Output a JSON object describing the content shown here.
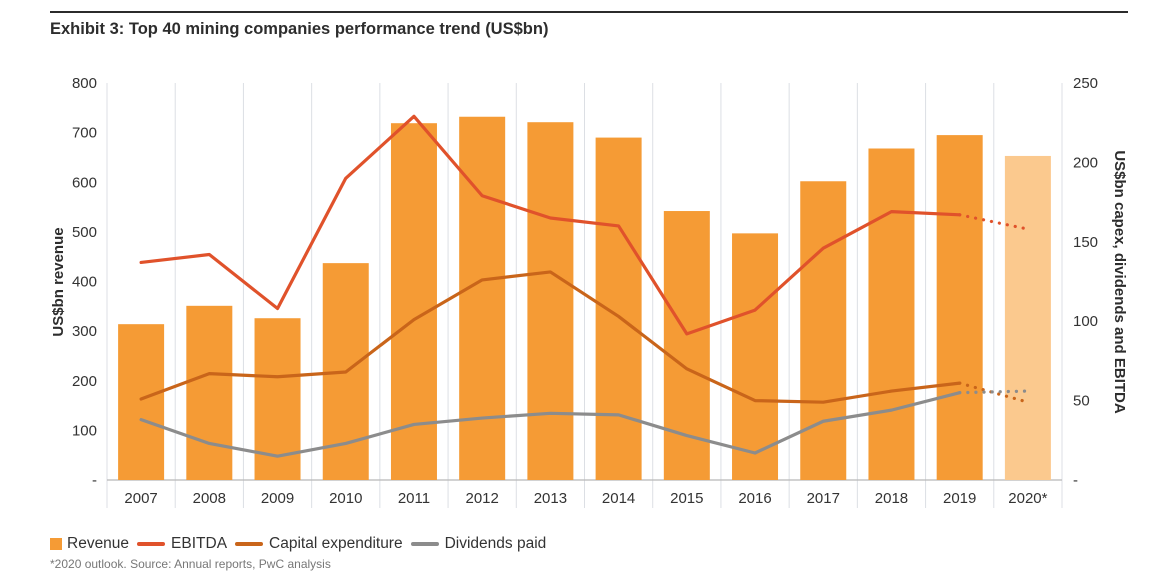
{
  "header": {
    "title": "Exhibit 3: Top 40 mining companies performance trend (US$bn)"
  },
  "legend": {
    "items": [
      {
        "label": "Revenue",
        "type": "box",
        "color": "#F59B35"
      },
      {
        "label": "EBITDA",
        "type": "line",
        "color": "#E0522B"
      },
      {
        "label": "Capital expenditure",
        "type": "line",
        "color": "#C9651A"
      },
      {
        "label": "Dividends paid",
        "type": "line",
        "color": "#8C8C8C"
      }
    ]
  },
  "footnote": "*2020 outlook. Source: Annual reports, PwC analysis",
  "chart_data": {
    "type": "bar",
    "title": "Exhibit 3: Top 40 mining companies performance trend (US$bn)",
    "xlabel": "",
    "ylabel": "US$bn revenue",
    "y2label": "US$bn capex, dividends and EBITDA",
    "categories": [
      "2007",
      "2008",
      "2009",
      "2010",
      "2011",
      "2012",
      "2013",
      "2014",
      "2015",
      "2016",
      "2017",
      "2018",
      "2019",
      "2020*"
    ],
    "ylim": [
      0,
      800
    ],
    "y_ticks": [
      0,
      100,
      200,
      300,
      400,
      500,
      600,
      700,
      800
    ],
    "y_tick_labels": [
      "-",
      "100",
      "200",
      "300",
      "400",
      "500",
      "600",
      "700",
      "800"
    ],
    "y2lim": [
      0,
      250
    ],
    "y2_ticks": [
      0,
      50,
      100,
      150,
      200,
      250
    ],
    "y2_tick_labels": [
      "-",
      "50",
      "100",
      "150",
      "200",
      "250"
    ],
    "grid": "vertical",
    "legend_position": "bottom-left",
    "forecast_category": "2020*",
    "series": [
      {
        "name": "Revenue",
        "type": "bar",
        "axis": "left",
        "color": "#F59B35",
        "forecast_color": "#FBC98E",
        "values": [
          314,
          351,
          326,
          437,
          719,
          732,
          721,
          690,
          542,
          497,
          602,
          668,
          695,
          653
        ]
      },
      {
        "name": "EBITDA",
        "type": "line",
        "axis": "right",
        "color": "#E0522B",
        "values": [
          137,
          142,
          108,
          190,
          229,
          179,
          165,
          160,
          92,
          107,
          146,
          169,
          167,
          158
        ]
      },
      {
        "name": "Capital expenditure",
        "type": "line",
        "axis": "right",
        "color": "#C9651A",
        "values": [
          51,
          67,
          65,
          68,
          101,
          126,
          131,
          103,
          70,
          50,
          49,
          56,
          61,
          49
        ]
      },
      {
        "name": "Dividends paid",
        "type": "line",
        "axis": "right",
        "color": "#8C8C8C",
        "values": [
          38,
          23,
          15,
          23,
          35,
          39,
          42,
          41,
          28,
          17,
          37,
          44,
          55,
          56
        ]
      }
    ]
  }
}
